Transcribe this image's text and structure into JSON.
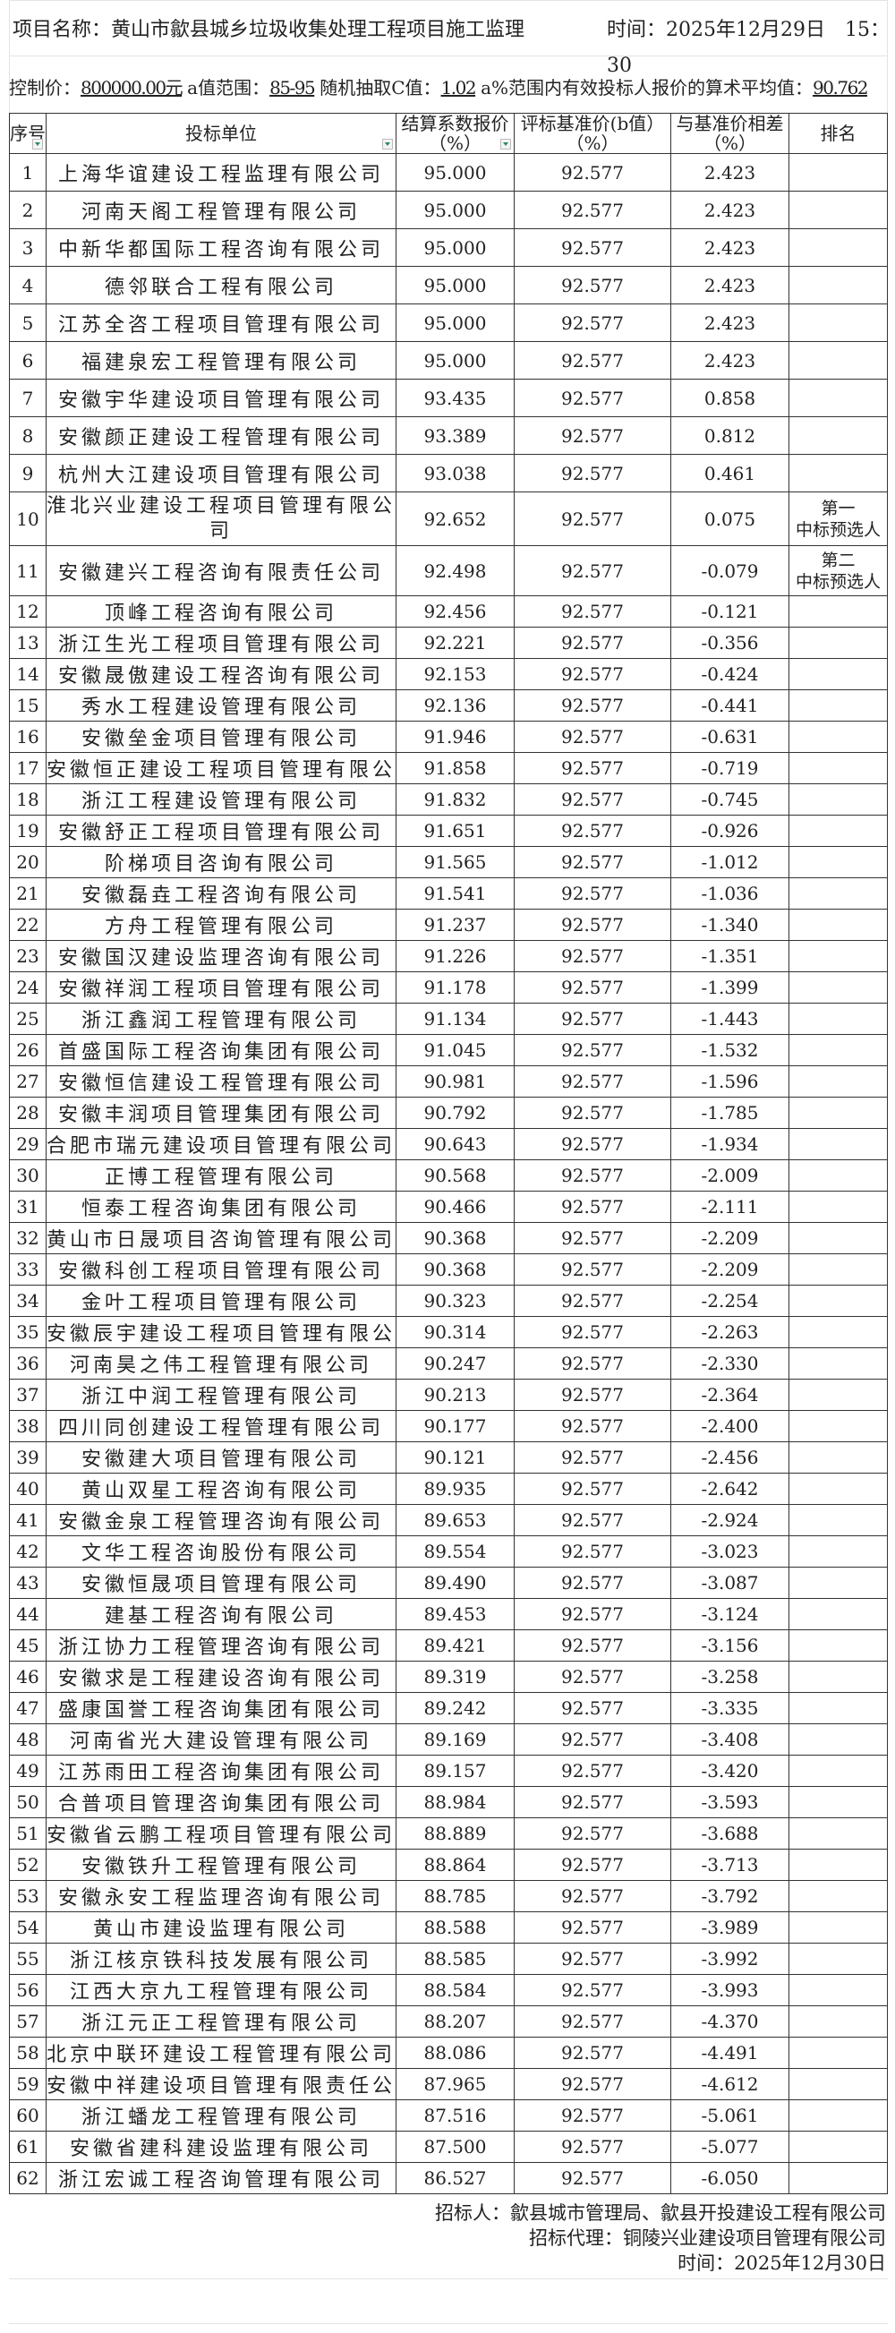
{
  "header": {
    "project_label": "项目名称：",
    "project_name": "黄山市歙县城乡垃圾收集处理工程项目施工监理",
    "time_label": "时间：",
    "time_value": "2025年12月29日　15：30"
  },
  "control": {
    "price_label": "控制价：",
    "price_value": "800000.00元",
    "a_range_label": "a值范围：",
    "a_range_value": "85-95",
    "c_label": "随机抽取C值：",
    "c_value": "1.02",
    "avg_label": "a%范围内有效投标人报价的算术平均值：",
    "avg_value": "90.762"
  },
  "table": {
    "columns": [
      "序号",
      "投标单位",
      "结算系数报价（%）",
      "评标基准价(b值）（%）",
      "与基准价相差（%）",
      "排名"
    ],
    "rows": [
      [
        "1",
        "上海华谊建设工程监理有限公司",
        "95.000",
        "92.577",
        "2.423",
        ""
      ],
      [
        "2",
        "河南天阁工程管理有限公司",
        "95.000",
        "92.577",
        "2.423",
        ""
      ],
      [
        "3",
        "中新华都国际工程咨询有限公司",
        "95.000",
        "92.577",
        "2.423",
        ""
      ],
      [
        "4",
        "德邻联合工程有限公司",
        "95.000",
        "92.577",
        "2.423",
        ""
      ],
      [
        "5",
        "江苏全咨工程项目管理有限公司",
        "95.000",
        "92.577",
        "2.423",
        ""
      ],
      [
        "6",
        "福建泉宏工程管理有限公司",
        "95.000",
        "92.577",
        "2.423",
        ""
      ],
      [
        "7",
        "安徽宇华建设项目管理有限公司",
        "93.435",
        "92.577",
        "0.858",
        ""
      ],
      [
        "8",
        "安徽颜正建设工程管理有限公司",
        "93.389",
        "92.577",
        "0.812",
        ""
      ],
      [
        "9",
        "杭州大江建设项目管理有限公司",
        "93.038",
        "92.577",
        "0.461",
        ""
      ],
      [
        "10",
        "淮北兴业建设工程项目管理有限公司",
        "92.652",
        "92.577",
        "0.075",
        "第一 中标预选人"
      ],
      [
        "11",
        "安徽建兴工程咨询有限责任公司",
        "92.498",
        "92.577",
        "-0.079",
        "第二 中标预选人"
      ],
      [
        "12",
        "顶峰工程咨询有限公司",
        "92.456",
        "92.577",
        "-0.121",
        ""
      ],
      [
        "13",
        "浙江生光工程项目管理有限公司",
        "92.221",
        "92.577",
        "-0.356",
        ""
      ],
      [
        "14",
        "安徽晟傲建设工程咨询有限公司",
        "92.153",
        "92.577",
        "-0.424",
        ""
      ],
      [
        "15",
        "秀水工程建设管理有限公司",
        "92.136",
        "92.577",
        "-0.441",
        ""
      ],
      [
        "16",
        "安徽垒金项目管理有限公司",
        "91.946",
        "92.577",
        "-0.631",
        ""
      ],
      [
        "17",
        "安徽恒正建设工程项目管理有限公",
        "91.858",
        "92.577",
        "-0.719",
        ""
      ],
      [
        "18",
        "浙江工程建设管理有限公司",
        "91.832",
        "92.577",
        "-0.745",
        ""
      ],
      [
        "19",
        "安徽舒正工程项目管理有限公司",
        "91.651",
        "92.577",
        "-0.926",
        ""
      ],
      [
        "20",
        "阶梯项目咨询有限公司",
        "91.565",
        "92.577",
        "-1.012",
        ""
      ],
      [
        "21",
        "安徽磊垚工程咨询有限公司",
        "91.541",
        "92.577",
        "-1.036",
        ""
      ],
      [
        "22",
        "方舟工程管理有限公司",
        "91.237",
        "92.577",
        "-1.340",
        ""
      ],
      [
        "23",
        "安徽国汉建设监理咨询有限公司",
        "91.226",
        "92.577",
        "-1.351",
        ""
      ],
      [
        "24",
        "安徽祥润工程项目管理有限公司",
        "91.178",
        "92.577",
        "-1.399",
        ""
      ],
      [
        "25",
        "浙江鑫润工程管理有限公司",
        "91.134",
        "92.577",
        "-1.443",
        ""
      ],
      [
        "26",
        "首盛国际工程咨询集团有限公司",
        "91.045",
        "92.577",
        "-1.532",
        ""
      ],
      [
        "27",
        "安徽恒信建设工程管理有限公司",
        "90.981",
        "92.577",
        "-1.596",
        ""
      ],
      [
        "28",
        "安徽丰润项目管理集团有限公司",
        "90.792",
        "92.577",
        "-1.785",
        ""
      ],
      [
        "29",
        "合肥市瑞元建设项目管理有限公司",
        "90.643",
        "92.577",
        "-1.934",
        ""
      ],
      [
        "30",
        "正博工程管理有限公司",
        "90.568",
        "92.577",
        "-2.009",
        ""
      ],
      [
        "31",
        "恒泰工程咨询集团有限公司",
        "90.466",
        "92.577",
        "-2.111",
        ""
      ],
      [
        "32",
        "黄山市日晟项目咨询管理有限公司",
        "90.368",
        "92.577",
        "-2.209",
        ""
      ],
      [
        "33",
        "安徽科创工程项目管理有限公司",
        "90.368",
        "92.577",
        "-2.209",
        ""
      ],
      [
        "34",
        "金叶工程项目管理有限公司",
        "90.323",
        "92.577",
        "-2.254",
        ""
      ],
      [
        "35",
        "安徽辰宇建设工程项目管理有限公",
        "90.314",
        "92.577",
        "-2.263",
        ""
      ],
      [
        "36",
        "河南昊之伟工程管理有限公司",
        "90.247",
        "92.577",
        "-2.330",
        ""
      ],
      [
        "37",
        "浙江中润工程管理有限公司",
        "90.213",
        "92.577",
        "-2.364",
        ""
      ],
      [
        "38",
        "四川同创建设工程管理有限公司",
        "90.177",
        "92.577",
        "-2.400",
        ""
      ],
      [
        "39",
        "安徽建大项目管理有限公司",
        "90.121",
        "92.577",
        "-2.456",
        ""
      ],
      [
        "40",
        "黄山双星工程咨询有限公司",
        "89.935",
        "92.577",
        "-2.642",
        ""
      ],
      [
        "41",
        "安徽金泉工程管理咨询有限公司",
        "89.653",
        "92.577",
        "-2.924",
        ""
      ],
      [
        "42",
        "文华工程咨询股份有限公司",
        "89.554",
        "92.577",
        "-3.023",
        ""
      ],
      [
        "43",
        "安徽恒晟项目管理有限公司",
        "89.490",
        "92.577",
        "-3.087",
        ""
      ],
      [
        "44",
        "建基工程咨询有限公司",
        "89.453",
        "92.577",
        "-3.124",
        ""
      ],
      [
        "45",
        "浙江协力工程管理咨询有限公司",
        "89.421",
        "92.577",
        "-3.156",
        ""
      ],
      [
        "46",
        "安徽求是工程建设咨询有限公司",
        "89.319",
        "92.577",
        "-3.258",
        ""
      ],
      [
        "47",
        "盛康国誉工程咨询集团有限公司",
        "89.242",
        "92.577",
        "-3.335",
        ""
      ],
      [
        "48",
        "河南省光大建设管理有限公司",
        "89.169",
        "92.577",
        "-3.408",
        ""
      ],
      [
        "49",
        "江苏雨田工程咨询集团有限公司",
        "89.157",
        "92.577",
        "-3.420",
        ""
      ],
      [
        "50",
        "合普项目管理咨询集团有限公司",
        "88.984",
        "92.577",
        "-3.593",
        ""
      ],
      [
        "51",
        "安徽省云鹏工程项目管理有限公司",
        "88.889",
        "92.577",
        "-3.688",
        ""
      ],
      [
        "52",
        "安徽铁升工程管理有限公司",
        "88.864",
        "92.577",
        "-3.713",
        ""
      ],
      [
        "53",
        "安徽永安工程监理咨询有限公司",
        "88.785",
        "92.577",
        "-3.792",
        ""
      ],
      [
        "54",
        "黄山市建设监理有限公司",
        "88.588",
        "92.577",
        "-3.989",
        ""
      ],
      [
        "55",
        "浙江核京铁科技发展有限公司",
        "88.585",
        "92.577",
        "-3.992",
        ""
      ],
      [
        "56",
        "江西大京九工程管理有限公司",
        "88.584",
        "92.577",
        "-3.993",
        ""
      ],
      [
        "57",
        "浙江元正工程管理有限公司",
        "88.207",
        "92.577",
        "-4.370",
        ""
      ],
      [
        "58",
        "北京中联环建设工程管理有限公司",
        "88.086",
        "92.577",
        "-4.491",
        ""
      ],
      [
        "59",
        "安徽中祥建设项目管理有限责任公",
        "87.965",
        "92.577",
        "-4.612",
        ""
      ],
      [
        "60",
        "浙江蟠龙工程管理有限公司",
        "87.516",
        "92.577",
        "-5.061",
        ""
      ],
      [
        "61",
        "安徽省建科建设监理有限公司",
        "87.500",
        "92.577",
        "-5.077",
        ""
      ],
      [
        "62",
        "浙江宏诚工程咨询管理有限公司",
        "86.527",
        "92.577",
        "-6.050",
        ""
      ]
    ]
  },
  "footer": {
    "tenderer": "招标人：歙县城市管理局、歙县开投建设工程有限公司",
    "agent": "招标代理：铜陵兴业建设项目管理有限公司",
    "date": "时间：2025年12月30日"
  },
  "icons": {
    "filter": "filter-dropdown-icon"
  }
}
